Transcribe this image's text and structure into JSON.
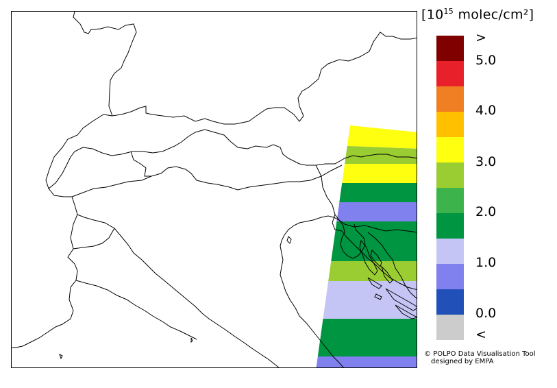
{
  "unit": {
    "prefix": "[10",
    "exponent": "15",
    "suffix": " molec/cm²]"
  },
  "colorbar": {
    "colors": [
      "#800000",
      "#e8202a",
      "#f07e22",
      "#ffc000",
      "#ffff10",
      "#9acd32",
      "#3cb44b",
      "#009540",
      "#c5c5f5",
      "#8080ee",
      "#2050b8",
      "#cccccc"
    ],
    "tick_labels": [
      ">",
      "5.0",
      "4.0",
      "3.0",
      "2.0",
      "1.0",
      "0.0",
      "<"
    ]
  },
  "credit": {
    "line1": "© POLPO Data Visualisation Tool",
    "line2": "designed by EMPA"
  },
  "swath": {
    "bands_top_to_bottom": [
      {
        "level": "3.0 - 3.5",
        "color": "#ffff10"
      },
      {
        "level": "2.5 - 3.0",
        "color": "#9acd32"
      },
      {
        "level": "3.0 - 3.5",
        "color": "#ffff10"
      },
      {
        "level": "1.5 - 2.0",
        "color": "#009540"
      },
      {
        "level": "0.5 - 1.0",
        "color": "#8080ee"
      },
      {
        "level": "1.5 - 2.0",
        "color": "#009540"
      },
      {
        "level": "2.5 - 3.0",
        "color": "#9acd32"
      },
      {
        "level": "1.0 - 1.5",
        "color": "#c5c5f5"
      },
      {
        "level": "1.5 - 2.0",
        "color": "#009540"
      },
      {
        "level": "0.5 - 1.0",
        "color": "#8080ee"
      }
    ]
  }
}
